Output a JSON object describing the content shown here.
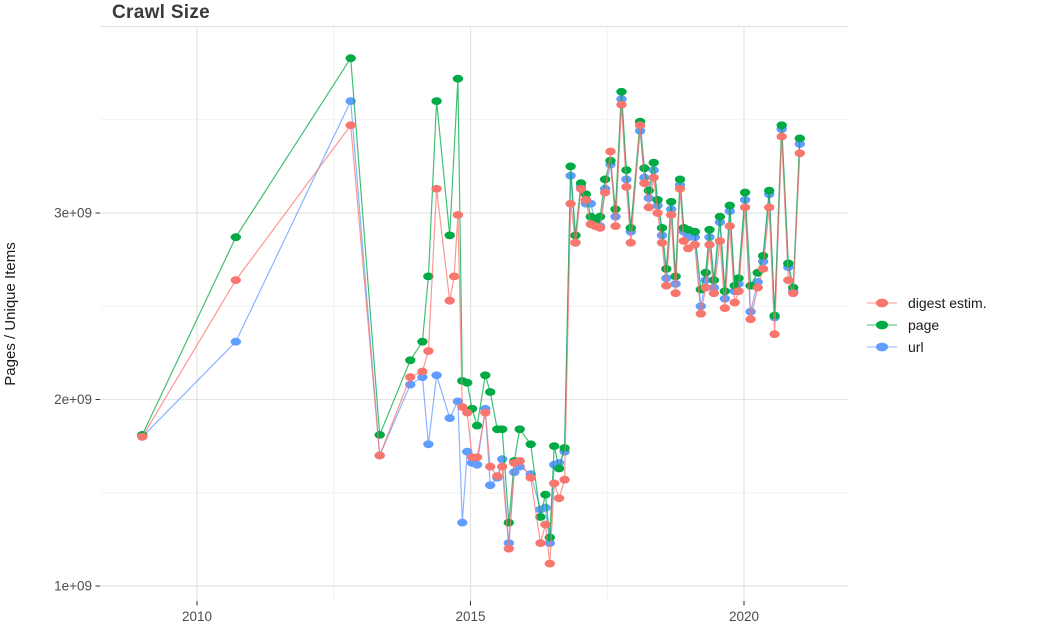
{
  "title": "Crawl Size",
  "legend": {
    "position": "right",
    "items": [
      {
        "label": "digest estim.",
        "color": "#F8766D"
      },
      {
        "label": "page",
        "color": "#00AB46"
      },
      {
        "label": "url",
        "color": "#619CFF"
      }
    ]
  },
  "chart_data": {
    "type": "line",
    "title": "Crawl Size",
    "xlabel": "",
    "ylabel": "Pages / Unique Items",
    "unit": "1e9 (billions of pages / unique items)",
    "grid": true,
    "legend_position": "right",
    "xlim": [
      2008.2,
      2021.9
    ],
    "ylim": [
      0.95,
      4.0
    ],
    "x_ticks": {
      "labeled": [
        {
          "v": 2010,
          "label": "2010"
        },
        {
          "v": 2015,
          "label": "2015"
        },
        {
          "v": 2020,
          "label": "2020"
        }
      ],
      "minor": [
        2012.5,
        2017.5
      ]
    },
    "y_ticks": {
      "labeled": [
        {
          "v": 1,
          "label": "1e+09"
        },
        {
          "v": 2,
          "label": "2e+09"
        },
        {
          "v": 3,
          "label": "3e+09"
        }
      ],
      "major_unlabeled": [
        4
      ],
      "minor": [
        1.5,
        2.5,
        3.5
      ]
    },
    "x": [
      2009.0,
      2010.71,
      2012.81,
      2013.34,
      2013.9,
      2014.12,
      2014.23,
      2014.38,
      2014.62,
      2014.7,
      2014.77,
      2014.85,
      2014.94,
      2015.03,
      2015.12,
      2015.27,
      2015.36,
      2015.49,
      2015.58,
      2015.7,
      2015.8,
      2015.9,
      2016.1,
      2016.28,
      2016.37,
      2016.45,
      2016.53,
      2016.62,
      2016.72,
      2016.83,
      2016.92,
      2017.02,
      2017.11,
      2017.2,
      2017.28,
      2017.37,
      2017.46,
      2017.56,
      2017.65,
      2017.76,
      2017.85,
      2017.93,
      2018.1,
      2018.18,
      2018.26,
      2018.35,
      2018.42,
      2018.5,
      2018.58,
      2018.67,
      2018.75,
      2018.83,
      2018.9,
      2018.98,
      2019.1,
      2019.21,
      2019.3,
      2019.37,
      2019.45,
      2019.56,
      2019.65,
      2019.74,
      2019.83,
      2019.9,
      2020.02,
      2020.12,
      2020.25,
      2020.35,
      2020.46,
      2020.56,
      2020.69,
      2020.81,
      2020.9,
      2021.02
    ],
    "series": [
      {
        "name": "digest estim.",
        "color": "#F8766D",
        "values": [
          1.8,
          2.64,
          3.47,
          1.7,
          2.12,
          2.15,
          2.26,
          3.13,
          2.53,
          2.66,
          2.99,
          1.96,
          1.93,
          1.69,
          1.69,
          1.93,
          1.64,
          1.59,
          1.64,
          1.2,
          1.66,
          1.67,
          1.58,
          1.23,
          1.33,
          1.12,
          1.55,
          1.47,
          1.57,
          3.05,
          2.84,
          3.13,
          3.07,
          2.94,
          2.93,
          2.92,
          3.11,
          3.33,
          2.93,
          3.58,
          3.14,
          2.84,
          3.47,
          3.16,
          3.03,
          3.19,
          3.0,
          2.84,
          2.61,
          2.99,
          2.57,
          3.13,
          2.85,
          2.81,
          2.83,
          2.46,
          2.6,
          2.83,
          2.57,
          2.85,
          2.49,
          2.93,
          2.52,
          2.58,
          3.03,
          2.43,
          2.6,
          2.7,
          3.03,
          2.35,
          3.41,
          2.64,
          2.57,
          3.32
        ]
      },
      {
        "name": "page",
        "color": "#00AB46",
        "values": [
          1.81,
          2.87,
          3.83,
          1.81,
          2.21,
          2.31,
          2.66,
          3.6,
          2.88,
          null,
          3.72,
          2.1,
          2.09,
          1.95,
          1.86,
          2.13,
          2.04,
          1.84,
          1.84,
          1.34,
          1.67,
          1.84,
          1.76,
          1.37,
          1.49,
          1.26,
          1.75,
          1.63,
          1.74,
          3.25,
          2.88,
          3.16,
          3.1,
          2.98,
          2.96,
          2.98,
          3.18,
          3.28,
          3.02,
          3.65,
          3.23,
          2.92,
          3.49,
          3.24,
          3.12,
          3.27,
          3.07,
          2.92,
          2.7,
          3.06,
          2.66,
          3.18,
          2.92,
          2.91,
          2.9,
          2.59,
          2.68,
          2.91,
          2.64,
          2.98,
          2.58,
          3.04,
          2.61,
          2.65,
          3.11,
          2.61,
          2.68,
          2.77,
          3.12,
          2.45,
          3.47,
          2.73,
          2.6,
          3.4
        ]
      },
      {
        "name": "url",
        "color": "#619CFF",
        "values": [
          1.8,
          2.31,
          3.6,
          1.7,
          2.08,
          2.12,
          1.76,
          2.13,
          1.9,
          null,
          1.99,
          1.34,
          1.72,
          1.66,
          1.65,
          1.95,
          1.54,
          1.58,
          1.68,
          1.23,
          1.61,
          1.64,
          1.6,
          1.41,
          1.42,
          1.23,
          1.65,
          1.66,
          1.72,
          3.2,
          2.84,
          3.14,
          3.05,
          3.05,
          2.95,
          2.93,
          3.13,
          3.26,
          2.98,
          3.61,
          3.18,
          2.9,
          3.44,
          3.19,
          3.08,
          3.23,
          3.04,
          2.88,
          2.65,
          3.02,
          2.62,
          3.15,
          2.9,
          2.87,
          2.87,
          2.5,
          2.64,
          2.87,
          2.6,
          2.95,
          2.54,
          3.01,
          2.58,
          2.62,
          3.07,
          2.47,
          2.63,
          2.74,
          3.1,
          2.44,
          3.45,
          2.71,
          2.58,
          3.37
        ]
      }
    ]
  },
  "style": {
    "grid_major_color": "#E4E4E4",
    "grid_minor_color": "#F2F2F2",
    "tick_color": "#333333",
    "tick_label_color": "#4d4d4d",
    "axis_title_color": "#1a1a1a",
    "title_color": "#3a3a3a",
    "background": "#ffffff"
  }
}
